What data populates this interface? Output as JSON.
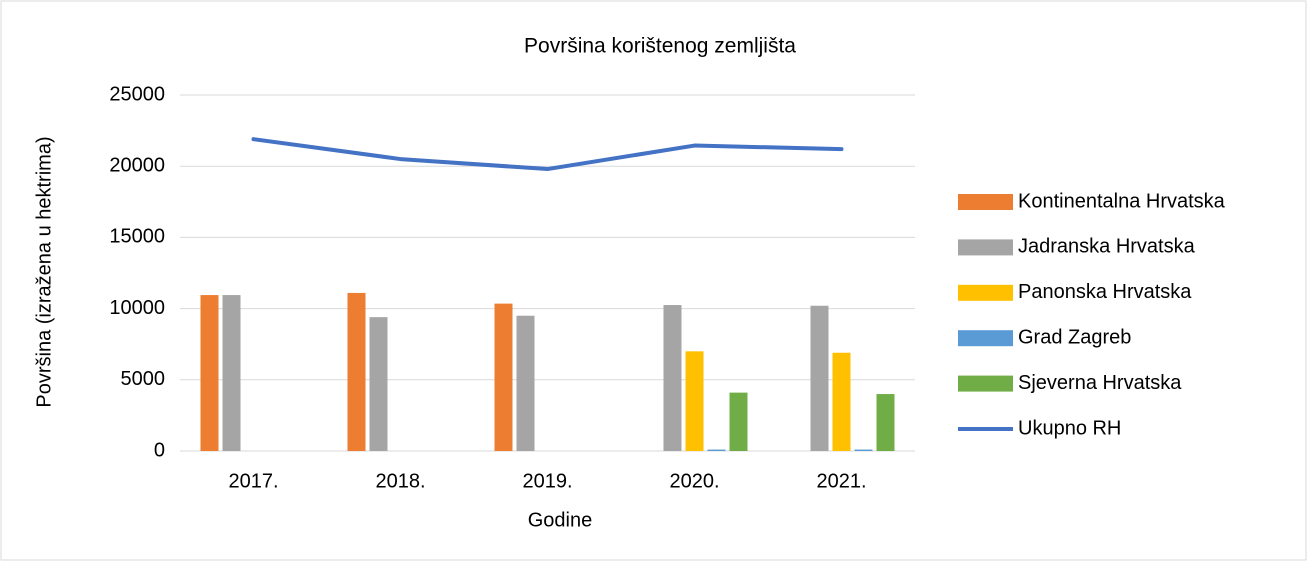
{
  "chart_data": {
    "type": "bar_line",
    "title": "Površina korištenog zemljišta",
    "xlabel": "Godine",
    "ylabel": "Površina (izražena u hektrima)",
    "categories": [
      "2017.",
      "2018.",
      "2019.",
      "2020.",
      "2021."
    ],
    "series": [
      {
        "name": "Kontinentalna Hrvatska",
        "color": "#ed7d31",
        "type": "bar",
        "values": [
          10950,
          11100,
          10350,
          null,
          null
        ]
      },
      {
        "name": "Jadranska Hrvatska",
        "color": "#a5a5a5",
        "type": "bar",
        "values": [
          10950,
          9400,
          9500,
          10250,
          10200
        ]
      },
      {
        "name": "Panonska Hrvatska",
        "color": "#ffc000",
        "type": "bar",
        "values": [
          null,
          null,
          null,
          7000,
          6900
        ]
      },
      {
        "name": "Grad Zagreb",
        "color": "#5b9bd5",
        "type": "bar",
        "values": [
          null,
          null,
          null,
          100,
          100
        ]
      },
      {
        "name": "Sjeverna Hrvatska",
        "color": "#70ad47",
        "type": "bar",
        "values": [
          null,
          null,
          null,
          4100,
          4000
        ]
      },
      {
        "name": "Ukupno RH",
        "color": "#4472c4",
        "type": "line",
        "values": [
          21900,
          20500,
          19800,
          21450,
          21200
        ]
      }
    ],
    "ylim": [
      0,
      25000
    ],
    "yticks": [
      0,
      5000,
      10000,
      15000,
      20000,
      25000
    ],
    "grid": true,
    "legend": "right"
  }
}
